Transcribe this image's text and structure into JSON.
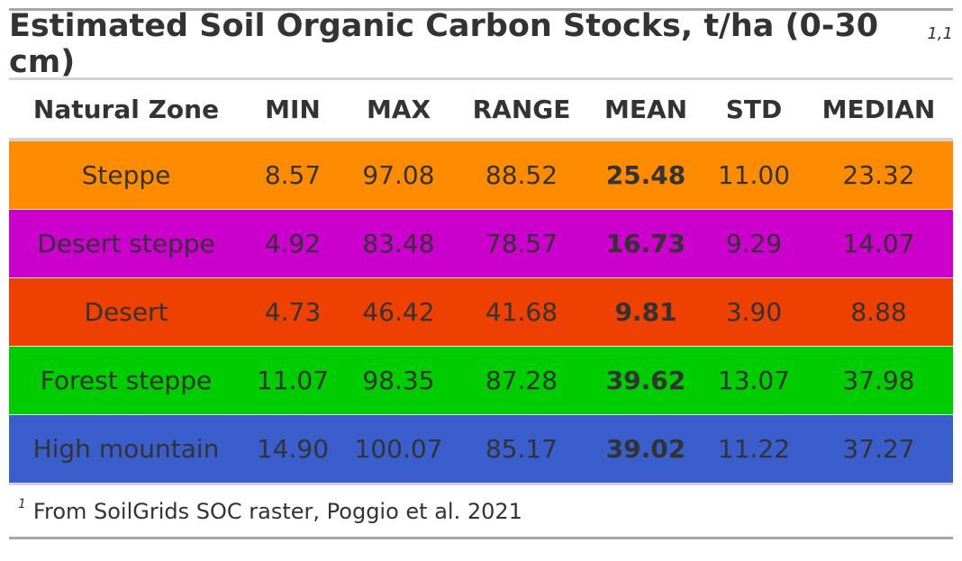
{
  "table": {
    "title": "Estimated Soil Organic Carbon Stocks, t/ha (0-30 cm)",
    "title_footnote_marks": "1,1",
    "columns": [
      "Natural Zone",
      "MIN",
      "MAX",
      "RANGE",
      "MEAN",
      "STD",
      "MEDIAN"
    ],
    "rows": [
      {
        "zone": "Steppe",
        "min": "8.57",
        "max": "97.08",
        "range": "88.52",
        "mean": "25.48",
        "std": "11.00",
        "median": "23.32",
        "color": "#ff8c00"
      },
      {
        "zone": "Desert steppe",
        "min": "4.92",
        "max": "83.48",
        "range": "78.57",
        "mean": "16.73",
        "std": "9.29",
        "median": "14.07",
        "color": "#cc00cc"
      },
      {
        "zone": "Desert",
        "min": "4.73",
        "max": "46.42",
        "range": "41.68",
        "mean": "9.81",
        "std": "3.90",
        "median": "8.88",
        "color": "#ee4000"
      },
      {
        "zone": "Forest steppe",
        "min": "11.07",
        "max": "98.35",
        "range": "87.28",
        "mean": "39.62",
        "std": "13.07",
        "median": "37.98",
        "color": "#00cd00"
      },
      {
        "zone": "High mountain",
        "min": "14.90",
        "max": "100.07",
        "range": "85.17",
        "mean": "39.02",
        "std": "11.22",
        "median": "37.27",
        "color": "#3a5fcd"
      }
    ],
    "footnote_mark": "1",
    "footnote": "From SoilGrids SOC raster, Poggio et al. 2021"
  }
}
